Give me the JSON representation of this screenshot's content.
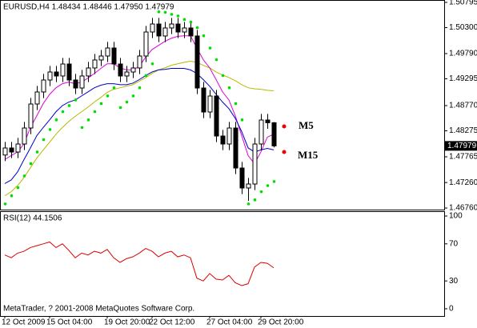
{
  "chart_data": [
    {
      "type": "candlestick",
      "title": "EURUSD,H4  1.48434 1.48446 1.47950 1.47979",
      "categories": [
        "12 Oct 2009",
        null,
        null,
        null,
        null,
        null,
        null,
        "15 Oct 04:00",
        null,
        null,
        null,
        null,
        null,
        null,
        null,
        null,
        "19 Oct 20:00",
        null,
        null,
        null,
        null,
        null,
        null,
        "22 Oct 12:00",
        null,
        null,
        null,
        null,
        null,
        null,
        null,
        null,
        "27 Oct 04:00",
        null,
        null,
        null,
        null,
        null,
        null,
        null,
        "29 Oct 20:00",
        null,
        null
      ],
      "open": [
        1.478,
        1.47938,
        1.47859,
        1.48016,
        1.4833,
        1.48801,
        1.49037,
        1.49272,
        1.49429,
        1.49351,
        1.49586,
        1.49272,
        1.49115,
        1.49351,
        1.49508,
        1.49665,
        1.49743,
        1.499,
        1.49586,
        1.49351,
        1.49429,
        1.49508,
        1.49743,
        1.50214,
        1.50371,
        1.50136,
        1.50293,
        1.50371,
        1.50214,
        1.50293,
        1.50136,
        1.49115,
        1.48644,
        1.48958,
        1.48173,
        1.48016,
        1.4833,
        1.47545,
        1.47153,
        1.47231,
        1.48016,
        1.48487,
        1.48434
      ],
      "high": [
        1.48058,
        1.48058,
        1.48136,
        1.4845,
        1.48921,
        1.49157,
        1.49392,
        1.49549,
        1.49549,
        1.49706,
        1.49706,
        1.49392,
        1.49471,
        1.49628,
        1.49785,
        1.49863,
        1.5002,
        1.5002,
        1.49706,
        1.49549,
        1.49628,
        1.49863,
        1.50334,
        1.50491,
        1.50491,
        1.50413,
        1.50491,
        1.50491,
        1.50413,
        1.50413,
        1.50256,
        1.49235,
        1.49078,
        1.49078,
        1.48293,
        1.4845,
        1.4845,
        1.47665,
        1.47351,
        1.48136,
        1.48607,
        1.48607,
        1.48446
      ],
      "low": [
        1.4768,
        1.47739,
        1.47739,
        1.47896,
        1.4821,
        1.48681,
        1.48917,
        1.49152,
        1.49231,
        1.49231,
        1.49152,
        1.48995,
        1.48995,
        1.49231,
        1.49388,
        1.49545,
        1.49623,
        1.49466,
        1.49231,
        1.49231,
        1.49309,
        1.49388,
        1.49623,
        1.50094,
        1.50016,
        1.50016,
        1.50173,
        1.50094,
        1.50094,
        1.50016,
        1.48995,
        1.48524,
        1.48524,
        1.48053,
        1.47896,
        1.47896,
        1.47425,
        1.47033,
        1.469,
        1.47111,
        1.47896,
        1.48314,
        1.4795
      ],
      "close": [
        1.47938,
        1.47859,
        1.48016,
        1.4833,
        1.48801,
        1.49037,
        1.49272,
        1.49429,
        1.49351,
        1.49586,
        1.49272,
        1.49115,
        1.49351,
        1.49508,
        1.49665,
        1.49743,
        1.499,
        1.49586,
        1.49351,
        1.49429,
        1.49508,
        1.49743,
        1.50214,
        1.50371,
        1.50136,
        1.50293,
        1.50371,
        1.50214,
        1.50293,
        1.50136,
        1.49115,
        1.48644,
        1.48958,
        1.48173,
        1.48016,
        1.4833,
        1.47545,
        1.47153,
        1.47231,
        1.48016,
        1.48487,
        1.48434,
        1.47979
      ],
      "bull_color": "#ffffff",
      "bear_color": "#000000",
      "series": [
        {
          "color": "#b8b800",
          "values": [
            1.47,
            1.4708,
            1.472,
            1.4736,
            1.4755,
            1.4774,
            1.479,
            1.4805,
            1.4821,
            1.4834,
            1.4846,
            1.4856,
            1.4865,
            1.4874,
            1.4884,
            1.4893,
            1.4903,
            1.4909,
            1.4912,
            1.4915,
            1.4918,
            1.4925,
            1.4932,
            1.494,
            1.4947,
            1.4951,
            1.4956,
            1.4959,
            1.4962,
            1.4964,
            1.4962,
            1.4956,
            1.4951,
            1.4943,
            1.4937,
            1.4932,
            1.4926,
            1.4918,
            1.4912,
            1.491,
            1.4909,
            1.4907,
            1.4906
          ]
        },
        {
          "name": "M5",
          "color": "#dd00dd",
          "values": [
            1.4771,
            1.4779,
            1.4786,
            1.4802,
            1.4834,
            1.4857,
            1.4881,
            1.4899,
            1.4912,
            1.492,
            1.4923,
            1.492,
            1.4923,
            1.4931,
            1.494,
            1.495,
            1.4959,
            1.4959,
            1.4951,
            1.4947,
            1.4947,
            1.4954,
            1.4972,
            1.4987,
            1.4995,
            1.5003,
            1.5009,
            1.5013,
            1.5014,
            1.5014,
            1.499,
            1.4967,
            1.4951,
            1.4928,
            1.4904,
            1.4888,
            1.4857,
            1.4818,
            1.4779,
            1.4763,
            1.4786,
            1.4815,
            1.4821
          ]
        },
        {
          "name": "M15",
          "color": "#0000cc",
          "values": [
            1.4724,
            1.4731,
            1.4747,
            1.4771,
            1.4794,
            1.4818,
            1.4834,
            1.4849,
            1.4865,
            1.4877,
            1.4884,
            1.4888,
            1.4896,
            1.4904,
            1.4912,
            1.4917,
            1.492,
            1.492,
            1.4918,
            1.4918,
            1.4921,
            1.4928,
            1.4936,
            1.4943,
            1.4947,
            1.4948,
            1.495,
            1.495,
            1.495,
            1.4947,
            1.494,
            1.4928,
            1.4915,
            1.4899,
            1.4884,
            1.4871,
            1.4852,
            1.4826,
            1.4794,
            1.4786,
            1.479,
            1.4793,
            1.479
          ]
        }
      ],
      "sar": {
        "color": "#00dd00",
        "values": [
          1.4684,
          1.47,
          1.4716,
          1.4739,
          1.4763,
          1.4786,
          1.481,
          1.483,
          1.4849,
          1.4865,
          1.4877,
          1.4888,
          1.4834,
          1.4849,
          1.4865,
          1.4881,
          1.4896,
          1.4912,
          1.4873,
          1.4884,
          1.4896,
          1.4912,
          1.4936,
          1.4959,
          1.5061,
          1.506,
          1.5056,
          1.5053,
          1.5046,
          1.5041,
          1.503,
          1.5014,
          1.499,
          1.4967,
          1.4936,
          1.4912,
          1.4881,
          1.4849,
          1.4684,
          1.4692,
          1.4708,
          1.472,
          1.4728
        ]
      },
      "last_price": 1.47979,
      "ylim": [
        1.46729,
        1.50842
      ],
      "yticks": [
        1.50795,
        {
          "value": 1.503,
          "label": "1.50300"
        },
        {
          "value": 1.4979,
          "label": "1.49790"
        },
        1.49295,
        {
          "value": 1.4877,
          "label": "1.48770"
        },
        1.48275,
        1.47765,
        {
          "value": 1.4726,
          "label": "1.47260"
        },
        {
          "value": 1.4676,
          "label": "1.46760"
        }
      ],
      "grid": false
    },
    {
      "type": "line",
      "title": "RSI(12) 44.1506",
      "footer": "MetaTrader, ? 2001-2008 MetaQuotes Software Corp.",
      "color": "#dd0000",
      "values": [
        58,
        55,
        60,
        62,
        66,
        68,
        70,
        72,
        66,
        70,
        63,
        55,
        60,
        58,
        62,
        60,
        64,
        55,
        50,
        54,
        56,
        60,
        65,
        62,
        56,
        60,
        62,
        56,
        58,
        55,
        33,
        30,
        38,
        32,
        31,
        36,
        28,
        25,
        27,
        45,
        50,
        49,
        44.1506
      ],
      "ylim": [
        -7.8,
        105.2
      ],
      "yticks": [
        100,
        70,
        30,
        0
      ],
      "grid": false
    }
  ]
}
